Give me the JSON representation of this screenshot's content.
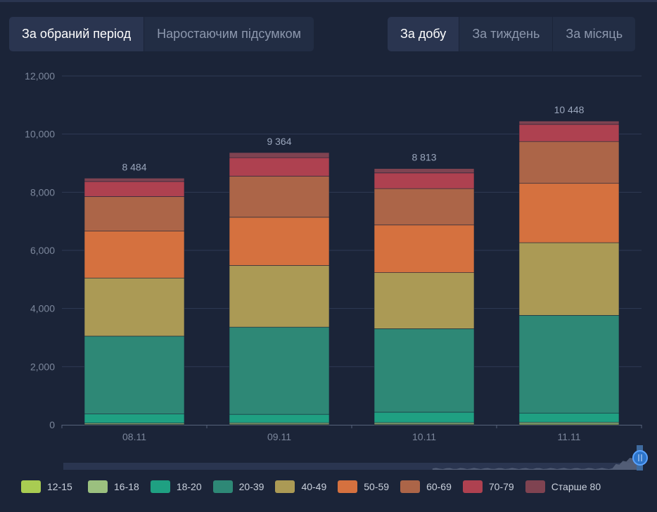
{
  "filters": {
    "period_tabs": [
      "За обраний період",
      "Наростаючим підсумком"
    ],
    "period_active": 0,
    "range_tabs": [
      "За добу",
      "За тиждень",
      "За місяць"
    ],
    "range_active": 0
  },
  "chart_data": {
    "type": "bar",
    "stacked": true,
    "categories": [
      "08.11",
      "09.11",
      "10.11",
      "11.11"
    ],
    "totals": [
      "8 484",
      "9 364",
      "8 813",
      "10 448"
    ],
    "ylim": [
      0,
      12000
    ],
    "yticks": [
      "0",
      "2,000",
      "4,000",
      "6,000",
      "8,000",
      "10,000",
      "12,000"
    ],
    "grid": true,
    "legend_position": "bottom",
    "series": [
      {
        "name": "12-15",
        "color": "#a9cc52",
        "values": [
          20,
          25,
          25,
          30
        ]
      },
      {
        "name": "16-18",
        "color": "#9bc07f",
        "values": [
          40,
          45,
          50,
          55
        ]
      },
      {
        "name": "18-20",
        "color": "#1fa082",
        "values": [
          310,
          290,
          360,
          320
        ]
      },
      {
        "name": "20-39",
        "color": "#2e8876",
        "values": [
          2680,
          3000,
          2870,
          3360
        ]
      },
      {
        "name": "40-49",
        "color": "#ab9a55",
        "values": [
          2000,
          2120,
          1930,
          2500
        ]
      },
      {
        "name": "50-59",
        "color": "#d5713f",
        "values": [
          1620,
          1660,
          1640,
          2040
        ]
      },
      {
        "name": "60-69",
        "color": "#ac6548",
        "values": [
          1180,
          1410,
          1250,
          1440
        ]
      },
      {
        "name": "70-79",
        "color": "#ae4150",
        "values": [
          520,
          640,
          540,
          590
        ]
      },
      {
        "name": "Старше 80",
        "color": "#7f4351",
        "values": [
          114,
          174,
          148,
          113
        ]
      }
    ]
  }
}
